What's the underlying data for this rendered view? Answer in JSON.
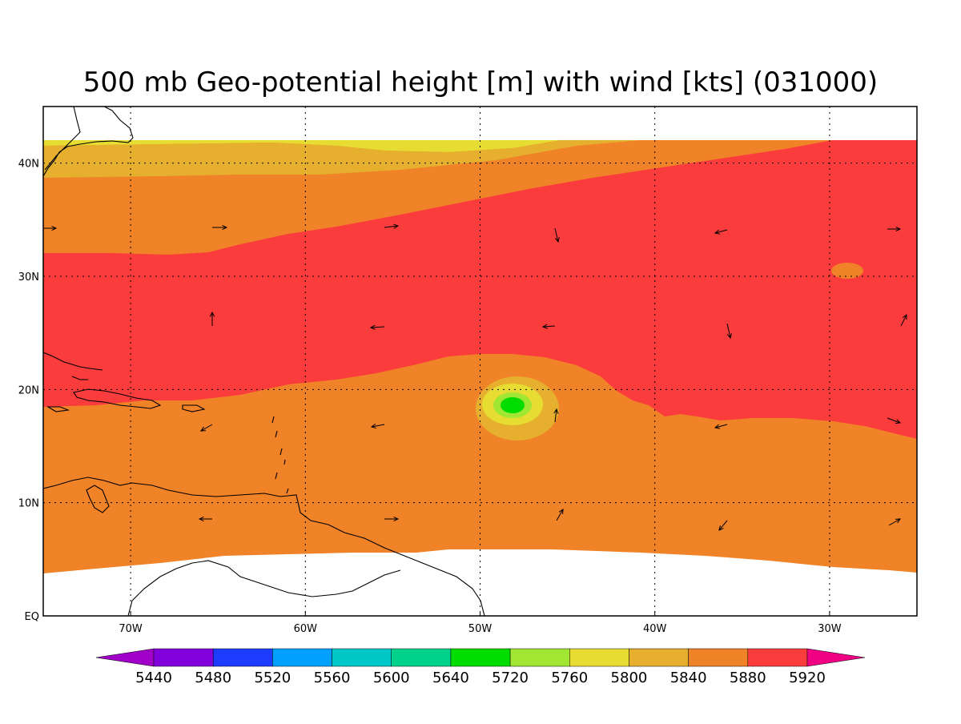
{
  "title": "500 mb Geo-potential height [m] with wind [kts] (031000)",
  "map": {
    "lon_range": [
      -75,
      -25
    ],
    "lat_range": [
      0,
      45
    ],
    "x_ticks": [
      {
        "lon": -70,
        "label": "70W"
      },
      {
        "lon": -60,
        "label": "60W"
      },
      {
        "lon": -50,
        "label": "50W"
      },
      {
        "lon": -40,
        "label": "40W"
      },
      {
        "lon": -30,
        "label": "30W"
      }
    ],
    "y_ticks": [
      {
        "lat": 0,
        "label": "EQ"
      },
      {
        "lat": 10,
        "label": "10N"
      },
      {
        "lat": 20,
        "label": "20N"
      },
      {
        "lat": 30,
        "label": "30N"
      },
      {
        "lat": 40,
        "label": "40N"
      }
    ],
    "grid": "dotted"
  },
  "colorbar": {
    "colors": [
      "#a000c8",
      "#8200dc",
      "#1e3cff",
      "#00a0ff",
      "#00c8c8",
      "#00d28c",
      "#00dc00",
      "#a0e632",
      "#e6dc32",
      "#e6af2d",
      "#f08228",
      "#fa3c3c",
      "#f00082"
    ],
    "labels": [
      "5440",
      "5480",
      "5520",
      "5560",
      "5600",
      "5640",
      "5720",
      "5760",
      "5800",
      "5840",
      "5880",
      "5920"
    ]
  },
  "fill_colors": {
    "5800": "#e6dc32",
    "5840": "#e6af2d",
    "5880": "#f08228",
    "5920": "#fa3c3c",
    "5760": "#a0e632",
    "5720": "#00dc00",
    "land": "#000000"
  }
}
